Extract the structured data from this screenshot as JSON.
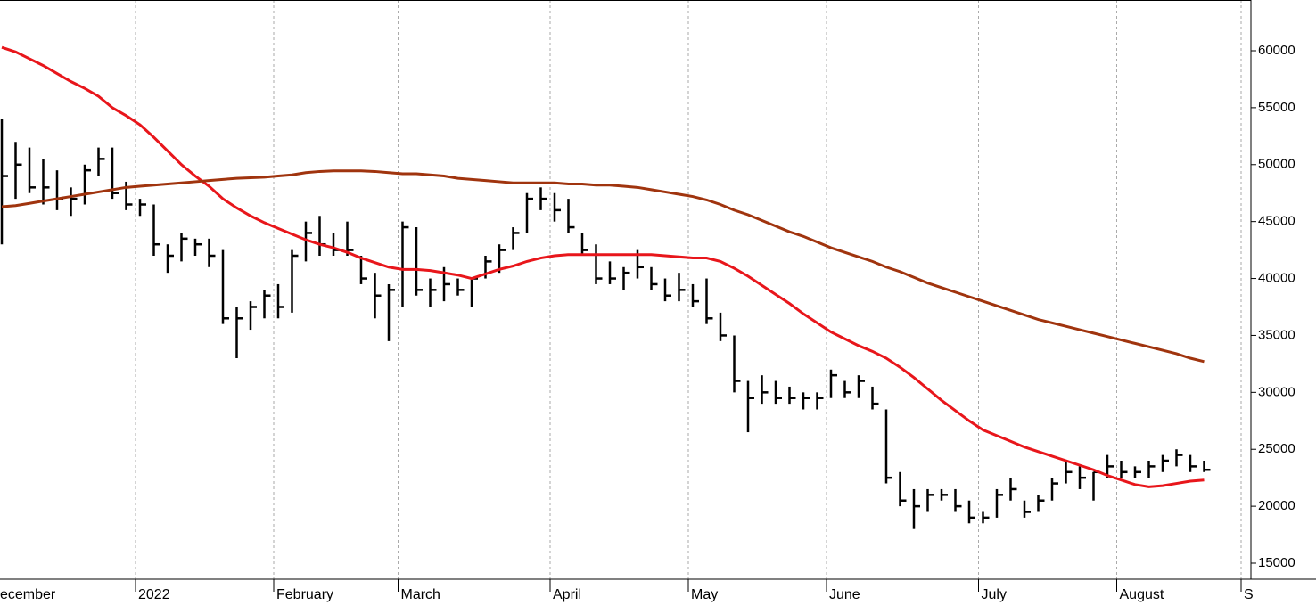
{
  "chart_data": {
    "type": "ohlc",
    "categories": [
      "ecember",
      null,
      null,
      null,
      null,
      null,
      null,
      null,
      null,
      null,
      "2022",
      null,
      null,
      null,
      null,
      null,
      null,
      null,
      null,
      null,
      "February",
      null,
      null,
      null,
      null,
      null,
      null,
      null,
      null,
      "March",
      null,
      null,
      null,
      null,
      null,
      null,
      null,
      null,
      null,
      null,
      "April",
      null,
      null,
      null,
      null,
      null,
      null,
      null,
      null,
      null,
      "May",
      null,
      null,
      null,
      null,
      null,
      null,
      null,
      null,
      null,
      "June",
      null,
      null,
      null,
      null,
      null,
      null,
      null,
      null,
      null,
      null,
      "July",
      null,
      null,
      null,
      null,
      null,
      null,
      null,
      null,
      null,
      "August",
      null,
      null,
      null,
      null,
      null,
      null,
      null,
      null,
      "S"
    ],
    "bars": {
      "color": "#000000",
      "high": [
        54000,
        52000,
        51500,
        50500,
        49500,
        48000,
        50000,
        51500,
        51500,
        48500,
        47000,
        46500,
        43000,
        44000,
        43500,
        43500,
        42500,
        37500,
        38000,
        39000,
        39500,
        42500,
        45000,
        45500,
        44000,
        45000,
        42000,
        40500,
        39500,
        45000,
        44500,
        40000,
        41000,
        40000,
        40000,
        42000,
        43000,
        44500,
        47500,
        48000,
        47500,
        47000,
        44000,
        43000,
        41500,
        41000,
        42500,
        41000,
        40000,
        40500,
        39500,
        40000,
        37000,
        35000,
        31000,
        31500,
        31000,
        30500,
        30000,
        30000,
        32000,
        31000,
        31500,
        30500,
        28500,
        23000,
        21500,
        21500,
        21500,
        21500,
        20500,
        19500,
        21500,
        22500,
        20500,
        21000,
        22500,
        24000,
        23500,
        23000,
        24500,
        24000,
        23500,
        24000,
        24500,
        25000,
        24500,
        24000,
        null,
        null,
        null
      ],
      "low": [
        43000,
        47000,
        47500,
        46500,
        46000,
        45500,
        46500,
        49000,
        47000,
        46000,
        45500,
        42000,
        40500,
        41500,
        42000,
        41000,
        36000,
        33000,
        35500,
        36500,
        36500,
        37000,
        41500,
        42000,
        42000,
        42000,
        39500,
        36500,
        34500,
        37500,
        38500,
        37500,
        38000,
        38500,
        37500,
        40000,
        40500,
        42500,
        44000,
        46000,
        45000,
        44000,
        42000,
        39500,
        39500,
        39000,
        40000,
        39000,
        38000,
        38000,
        37500,
        36000,
        34500,
        30000,
        26500,
        29000,
        29000,
        29000,
        28500,
        28500,
        29500,
        29500,
        29500,
        28500,
        22000,
        20000,
        18000,
        19500,
        20500,
        19500,
        18500,
        18500,
        19000,
        20500,
        19000,
        19500,
        20500,
        22000,
        21500,
        20500,
        22500,
        22500,
        22500,
        22500,
        23000,
        23500,
        23000,
        23000,
        null,
        null,
        null
      ],
      "close": [
        49000,
        50000,
        48000,
        48000,
        47000,
        47000,
        49500,
        50500,
        47500,
        46500,
        46500,
        43000,
        42000,
        43500,
        43000,
        42000,
        36500,
        36500,
        37500,
        38500,
        37500,
        42000,
        44000,
        43000,
        42500,
        42500,
        40000,
        38500,
        39000,
        44500,
        39000,
        39000,
        39500,
        39000,
        40000,
        41500,
        42500,
        44000,
        47000,
        47000,
        46000,
        44500,
        42500,
        40000,
        40000,
        40500,
        41000,
        39500,
        38500,
        39000,
        38000,
        36500,
        35000,
        31000,
        29500,
        30000,
        29500,
        29500,
        29500,
        29500,
        31500,
        30000,
        31000,
        29000,
        22500,
        20500,
        20000,
        21000,
        21000,
        20000,
        19000,
        19000,
        21000,
        21500,
        19500,
        20500,
        22000,
        23000,
        22500,
        23000,
        23500,
        23000,
        23000,
        23500,
        24000,
        24500,
        23500,
        23200,
        null,
        null,
        null
      ]
    },
    "lines": [
      {
        "color": "#e8161b",
        "values": [
          60300,
          59900,
          59300,
          58700,
          58000,
          57300,
          56700,
          56000,
          55000,
          54300,
          53500,
          52400,
          51200,
          50000,
          49000,
          48100,
          47000,
          46200,
          45500,
          44900,
          44400,
          43900,
          43400,
          43000,
          42700,
          42300,
          41800,
          41400,
          41000,
          40800,
          40800,
          40700,
          40500,
          40300,
          40000,
          40400,
          40800,
          41100,
          41500,
          41800,
          42000,
          42100,
          42100,
          42100,
          42100,
          42100,
          42100,
          42100,
          42000,
          41900,
          41800,
          41800,
          41500,
          40900,
          40200,
          39400,
          38600,
          37800,
          36900,
          36100,
          35300,
          34700,
          34100,
          33600,
          33000,
          32200,
          31300,
          30300,
          29300,
          28400,
          27500,
          26700,
          26200,
          25700,
          25200,
          24800,
          24400,
          24000,
          23600,
          23200,
          22700,
          22300,
          21900,
          21700,
          21800,
          22000,
          22200,
          22300,
          null,
          null,
          null
        ]
      },
      {
        "color": "#a0340e",
        "values": [
          46300,
          46400,
          46600,
          46800,
          47000,
          47200,
          47400,
          47600,
          47800,
          48000,
          48100,
          48200,
          48300,
          48400,
          48500,
          48600,
          48700,
          48800,
          48850,
          48900,
          49000,
          49100,
          49300,
          49400,
          49450,
          49450,
          49450,
          49400,
          49300,
          49200,
          49200,
          49100,
          49000,
          48800,
          48700,
          48600,
          48500,
          48400,
          48400,
          48400,
          48400,
          48300,
          48300,
          48200,
          48200,
          48100,
          48000,
          47800,
          47600,
          47400,
          47200,
          46900,
          46500,
          46000,
          45600,
          45100,
          44600,
          44100,
          43700,
          43200,
          42700,
          42300,
          41900,
          41500,
          41000,
          40600,
          40100,
          39600,
          39200,
          38800,
          38400,
          38000,
          37600,
          37200,
          36800,
          36400,
          36100,
          35800,
          35500,
          35200,
          34900,
          34600,
          34300,
          34000,
          33700,
          33400,
          33000,
          32700,
          null,
          null,
          null
        ]
      }
    ],
    "ylim": [
      13592,
      64460
    ],
    "yticks": [
      15000,
      20000,
      25000,
      30000,
      35000,
      40000,
      45000,
      50000,
      55000,
      60000
    ],
    "grid": true
  }
}
